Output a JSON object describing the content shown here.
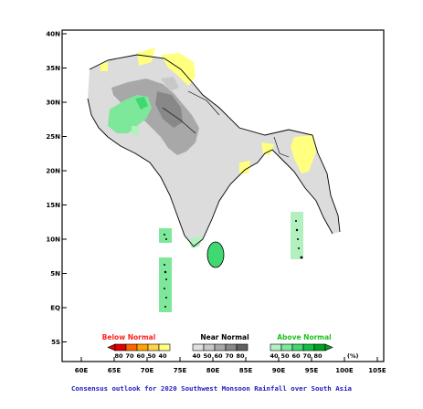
{
  "map": {
    "lon_ticks": [
      "60E",
      "65E",
      "70E",
      "75E",
      "80E",
      "85E",
      "90E",
      "95E",
      "100E",
      "105E"
    ],
    "lat_ticks": [
      "40N",
      "35N",
      "30N",
      "25N",
      "20N",
      "15N",
      "10N",
      "5N",
      "EQ",
      "5S"
    ]
  },
  "legend": {
    "below": {
      "title": "Below Normal",
      "values": [
        "80",
        "70",
        "60",
        "50",
        "40"
      ],
      "colors": [
        "#e00000",
        "#ff6600",
        "#ffa500",
        "#ffd24a",
        "#ffff80"
      ],
      "title_color": "#ff2020"
    },
    "near": {
      "title": "Near Normal",
      "values": [
        "40",
        "50",
        "60",
        "70",
        "80"
      ],
      "colors": [
        "#e0e0e0",
        "#c8c8c8",
        "#a8a8a8",
        "#888888",
        "#606060"
      ],
      "title_color": "#000000"
    },
    "above": {
      "title": "Above Normal",
      "values": [
        "40",
        "50",
        "60",
        "70",
        "80"
      ],
      "colors": [
        "#b2f0c0",
        "#7ee89a",
        "#40d870",
        "#10c040",
        "#00a020"
      ],
      "title_color": "#20c020"
    },
    "unit": "(%)"
  },
  "caption": "Consensus outlook for 2020 Southwest Monsoon Rainfall over South Asia"
}
